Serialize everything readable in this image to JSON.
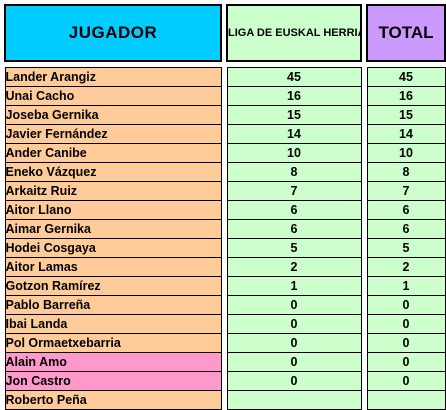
{
  "colors": {
    "header_player_bg": "#00ccff",
    "header_liga_bg": "#ccffcc",
    "header_total_bg": "#cc99ff",
    "row_orange_bg": "#ffcc99",
    "row_pink_bg": "#ff99cc",
    "value_cell_bg": "#ccffcc"
  },
  "header": {
    "player": "JUGADOR",
    "liga": "LIGA DE EUSKAL HERRIA JUVENIL MASCULINA",
    "total": "TOTAL"
  },
  "rows": [
    {
      "name": "Lander Arangiz",
      "liga": "45",
      "total": "45",
      "style": "orange"
    },
    {
      "name": "Unai Cacho",
      "liga": "16",
      "total": "16",
      "style": "orange"
    },
    {
      "name": "Joseba Gernika",
      "liga": "15",
      "total": "15",
      "style": "orange"
    },
    {
      "name": "Javier Fernández",
      "liga": "14",
      "total": "14",
      "style": "orange"
    },
    {
      "name": "Ander Canibe",
      "liga": "10",
      "total": "10",
      "style": "orange"
    },
    {
      "name": "Eneko Vázquez",
      "liga": "8",
      "total": "8",
      "style": "orange"
    },
    {
      "name": "Arkaitz Ruiz",
      "liga": "7",
      "total": "7",
      "style": "orange"
    },
    {
      "name": "Aitor Llano",
      "liga": "6",
      "total": "6",
      "style": "orange"
    },
    {
      "name": "Aimar Gernika",
      "liga": "6",
      "total": "6",
      "style": "orange"
    },
    {
      "name": "Hodei Cosgaya",
      "liga": "5",
      "total": "5",
      "style": "orange"
    },
    {
      "name": "Aitor Lamas",
      "liga": "2",
      "total": "2",
      "style": "orange"
    },
    {
      "name": "Gotzon Ramírez",
      "liga": "1",
      "total": "1",
      "style": "orange"
    },
    {
      "name": "Pablo Barreña",
      "liga": "0",
      "total": "0",
      "style": "orange"
    },
    {
      "name": "Ibai Landa",
      "liga": "0",
      "total": "0",
      "style": "orange"
    },
    {
      "name": "Pol Ormaetxebarria",
      "liga": "0",
      "total": "0",
      "style": "orange"
    },
    {
      "name": "Alain Amo",
      "liga": "0",
      "total": "0",
      "style": "pink"
    },
    {
      "name": "Jon Castro",
      "liga": "0",
      "total": "0",
      "style": "pink"
    },
    {
      "name": "Roberto Peña",
      "liga": "",
      "total": "",
      "style": "orange"
    }
  ]
}
